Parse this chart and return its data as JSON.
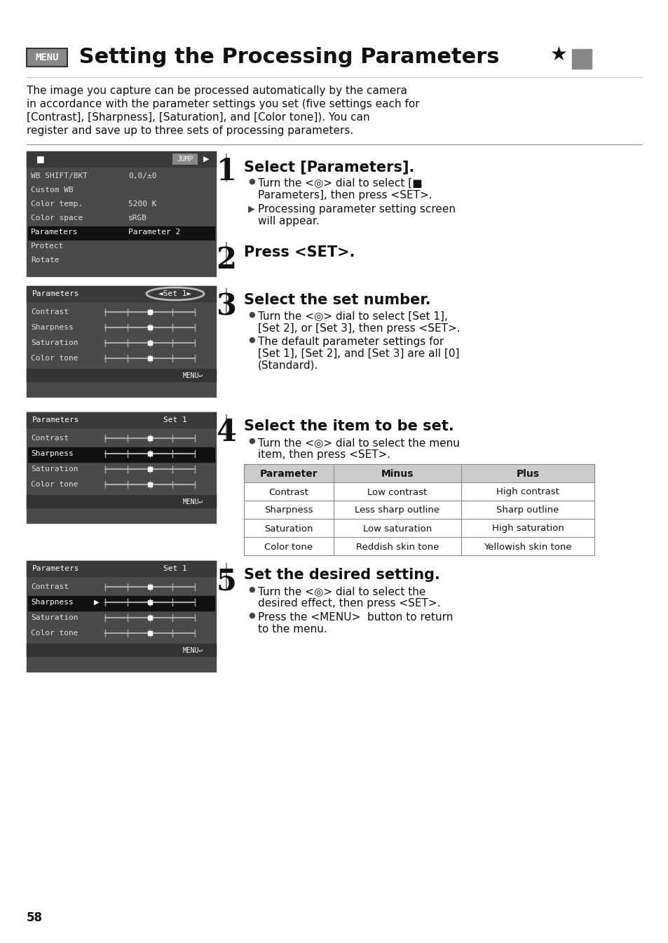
{
  "bg_color": "#ffffff",
  "title_menu_text": "MENU",
  "title_text": " Setting the Processing Parameters",
  "title_star": "★",
  "title_fontsize": 22,
  "body_fontsize": 11,
  "small_fontsize": 9.5,
  "step1_title": "Select [Parameters].",
  "step2_title": "Press <SET>.",
  "step3_title": "Select the set number.",
  "step4_title": "Select the item to be set.",
  "table_headers": [
    "Parameter",
    "Minus",
    "Plus"
  ],
  "table_rows": [
    [
      "Contrast",
      "Low contrast",
      "High contrast"
    ],
    [
      "Sharpness",
      "Less sharp outline",
      "Sharp outline"
    ],
    [
      "Saturation",
      "Low saturation",
      "High saturation"
    ],
    [
      "Color tone",
      "Reddish skin tone",
      "Yellowish skin tone"
    ]
  ],
  "step5_title": "Set the desired setting.",
  "page_number": "58",
  "screen_bg": "#4a4a4a",
  "screen_header_bg": "#3a3a3a",
  "screen_text_color": "#e0e0e0"
}
